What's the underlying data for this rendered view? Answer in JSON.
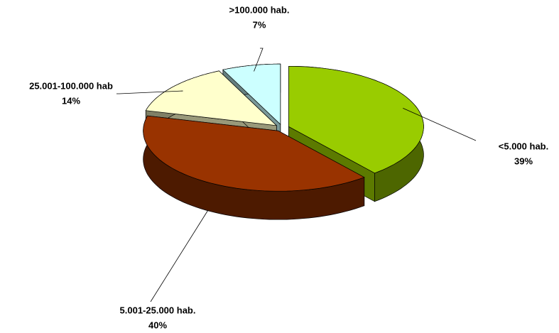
{
  "chart_data": {
    "type": "pie",
    "categories": [
      "<5.000 hab.",
      "5.001-25.000 hab.",
      "25.001-100.000 hab",
      ">100.000 hab."
    ],
    "values": [
      39,
      40,
      14,
      7
    ],
    "value_labels": [
      "39%",
      "40%",
      "14%",
      "7%"
    ],
    "colors": [
      "#99cc00",
      "#993300",
      "#ffffcc",
      "#ccffff"
    ]
  }
}
